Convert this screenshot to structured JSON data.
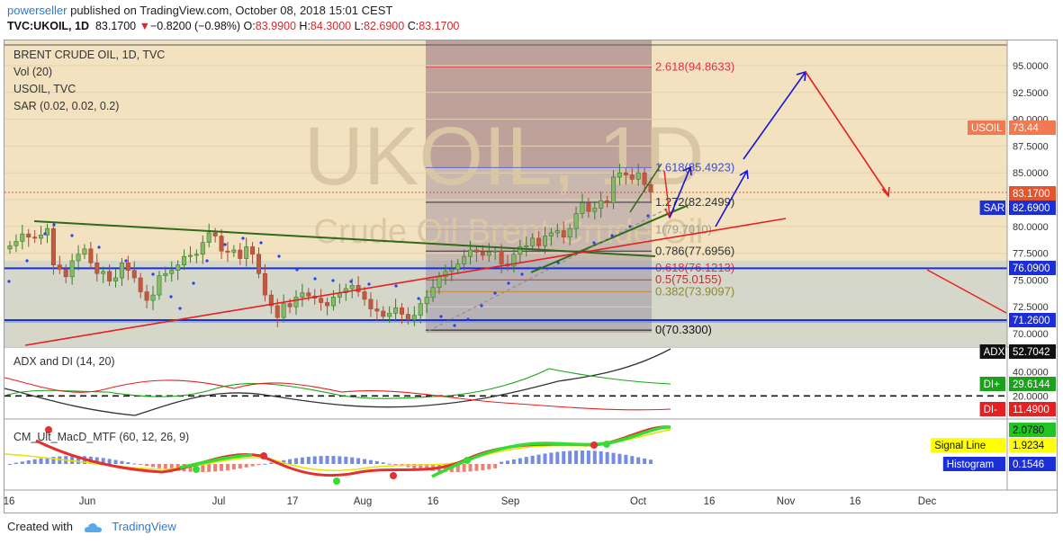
{
  "header": {
    "author": "powerseller",
    "published": " published on TradingView.com, October 08, 2018 15:01 CEST",
    "symbol": "TVC:UKOIL, 1D",
    "last": "83.1700",
    "change": "−0.8200 (−0.98%)",
    "o_label": "O:",
    "o": "83.9900",
    "h_label": "H:",
    "h": "84.3000",
    "l_label": "L:",
    "l": "82.6900",
    "c_label": "C:",
    "c": "83.1700"
  },
  "legend": {
    "title": "BRENT CRUDE OIL, 1D, TVC",
    "vol": "Vol (20)",
    "compare": "USOIL, TVC",
    "sar": "SAR (0.02, 0.02, 0.2)"
  },
  "watermark": {
    "big": "UKOIL, 1D",
    "sub": "Crude Oil Brent Crude Oil"
  },
  "adx_title": "ADX and DI (14, 20)",
  "macd_title": "CM_Ult_MacD_MTF (60, 12, 26, 9)",
  "fib_labels": [
    {
      "text": "2.618(94.8633)",
      "color": "#e0334a"
    },
    {
      "text": "1.618(85.4923)",
      "color": "#3d4fd1"
    },
    {
      "text": "1.272(82.2499)",
      "color": "#333333"
    },
    {
      "text": "1(79.7010)",
      "color": "#9a9a9a"
    },
    {
      "text": "0.786(77.6956)",
      "color": "#333333"
    },
    {
      "text": "0.618(76.1213)",
      "color": "#e0334a"
    },
    {
      "text": "0.5(75.0155)",
      "color": "#c23030"
    },
    {
      "text": "0.382(73.9097)",
      "color": "#8a8a30"
    },
    {
      "text": "0(70.3300)",
      "color": "#111111"
    }
  ],
  "price_axis": [
    "95.0000",
    "92.5000",
    "90.0000",
    "87.5000",
    "85.0000",
    "80.0000",
    "77.5000",
    "75.0000",
    "72.5000",
    "70.0000"
  ],
  "price_tags": [
    {
      "text": "USOIL",
      "value": "73.44",
      "bg": "#f07a52",
      "fg": "#ffffff"
    },
    {
      "text": "SAR",
      "value": "82.6900",
      "bg": "#1c2fd6",
      "fg": "#ffffff"
    },
    {
      "text": "",
      "value": "83.1700",
      "bg": "#e4552e",
      "fg": "#ffffff"
    },
    {
      "text": "",
      "value": "76.0900",
      "bg": "#1c2fd6",
      "fg": "#ffffff"
    },
    {
      "text": "",
      "value": "71.2600",
      "bg": "#1c2fd6",
      "fg": "#ffffff"
    }
  ],
  "adx_axis": [
    "40.0000",
    "20.0000"
  ],
  "adx_tags": [
    {
      "text": "ADX",
      "value": "52.7042",
      "bg": "#111111",
      "fg": "#ffffff"
    },
    {
      "text": "DI+",
      "value": "29.6144",
      "bg": "#1aa31a",
      "fg": "#ffffff"
    },
    {
      "text": "DI-",
      "value": "11.4900",
      "bg": "#e62020",
      "fg": "#ffffff"
    }
  ],
  "macd_tags": [
    {
      "text": "Signal Line",
      "value": "1.9234",
      "bg": "#ffff00",
      "fg": "#111111"
    },
    {
      "text": "",
      "value": "2.0780",
      "bg": "#22c422",
      "fg": "#111111"
    },
    {
      "text": "Histogram",
      "value": "0.1546",
      "bg": "#1c2fd6",
      "fg": "#ffffff"
    }
  ],
  "time_axis": [
    "16",
    "Jun",
    "Jul",
    "17",
    "Aug",
    "16",
    "Sep",
    "Oct",
    "16",
    "Nov",
    "16",
    "Dec"
  ],
  "footer": {
    "created": "Created with",
    "brand": "TradingView"
  },
  "colors": {
    "bg_zone": "#f1deb9",
    "box": "#8c7fa0",
    "green": "#2e6b1a",
    "red": "#e82020",
    "blue": "#1414e0"
  },
  "chart_data": {
    "type": "candlestick",
    "title": "BRENT CRUDE OIL, 1D, TVC",
    "ylim": [
      69.0,
      96.5
    ],
    "x_start": "2018-05-14",
    "x_end": "2018-12-31",
    "candles_close": [
      78.2,
      78.6,
      79.3,
      79.0,
      78.9,
      79.2,
      79.8,
      76.4,
      76.0,
      75.3,
      76.8,
      77.4,
      77.9,
      76.6,
      75.6,
      75.8,
      74.9,
      75.2,
      76.6,
      75.9,
      75.2,
      73.9,
      73.1,
      73.6,
      75.4,
      75.6,
      75.9,
      76.4,
      77.2,
      77.3,
      77.4,
      78.5,
      79.4,
      79.1,
      77.7,
      77.6,
      77.8,
      77.0,
      78.1,
      77.4,
      75.6,
      73.6,
      72.6,
      71.5,
      72.8,
      72.5,
      73.4,
      73.8,
      73.5,
      73.3,
      72.9,
      72.6,
      73.4,
      73.8,
      74.2,
      74.5,
      73.9,
      73.2,
      72.3,
      72.1,
      71.6,
      71.9,
      72.4,
      71.8,
      71.3,
      71.7,
      72.8,
      73.4,
      74.3,
      75.3,
      75.8,
      76.0,
      76.5,
      77.2,
      77.8,
      77.6,
      77.3,
      77.6,
      77.7,
      76.5,
      76.3,
      77.4,
      78.1,
      78.2,
      78.9,
      78.2,
      79.1,
      79.4,
      79.6,
      79.0,
      79.8,
      81.2,
      82.2,
      81.4,
      81.7,
      82.4,
      82.2,
      84.6,
      85.0,
      84.8,
      84.4,
      85.0,
      83.9,
      83.2
    ],
    "annotations": {
      "fibonacci": [
        {
          "level": "2.618",
          "value": 94.8633
        },
        {
          "level": "1.618",
          "value": 85.4923
        },
        {
          "level": "1.272",
          "value": 82.2499
        },
        {
          "level": "1",
          "value": 79.701
        },
        {
          "level": "0.786",
          "value": 77.6956
        },
        {
          "level": "0.618",
          "value": 76.1213
        },
        {
          "level": "0.5",
          "value": 75.0155
        },
        {
          "level": "0.382",
          "value": 73.9097
        },
        {
          "level": "0",
          "value": 70.33
        }
      ],
      "horizontal_lines": [
        76.09,
        71.26
      ],
      "projection_path_blue": [
        [
          80.2,
          "2018-10-20"
        ],
        [
          85.5,
          "2018-10-27"
        ]
      ],
      "projection_peak": 94.6,
      "projection_target": 83.0
    },
    "sub_charts": [
      {
        "name": "ADX and DI (14, 20)",
        "ADX": 52.7042,
        "DI+": 29.6144,
        "DI-": 11.49,
        "level": 20
      },
      {
        "name": "CM_Ult_MacD_MTF (60, 12, 26, 9)",
        "macd": 2.078,
        "signal": 1.9234,
        "histogram": 0.1546
      }
    ]
  }
}
